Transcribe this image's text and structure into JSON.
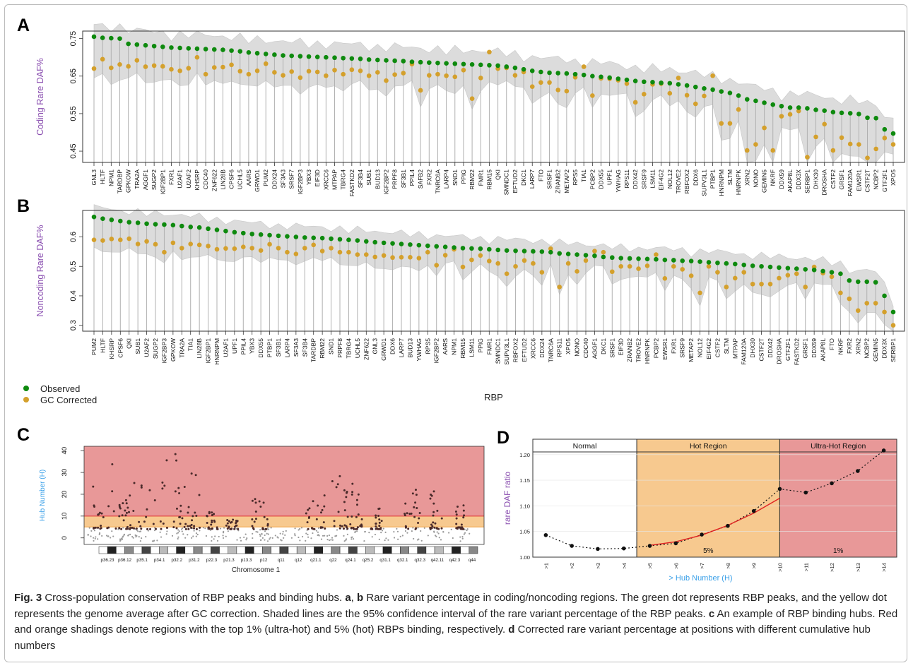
{
  "panels": {
    "a": "A",
    "b": "B",
    "c": "C",
    "d": "D"
  },
  "colors": {
    "observed": "#0e8a0e",
    "gc_corrected": "#d4a02c",
    "band": "#dcdcdc",
    "ylabel": "#8a4fb0",
    "xlabel_d": "#3aa0e8",
    "ultra_hot": "#e89898",
    "hot": "#f7c98f",
    "hub_axis": "#3aa0e8"
  },
  "legend": {
    "observed": "Observed",
    "gc_corrected": "GC Corrected"
  },
  "chart_data": [
    {
      "type": "scatter",
      "panel": "A",
      "ylabel": "Coding Rare DAF%",
      "ylim": [
        0.42,
        0.77
      ],
      "yticks": [
        0.45,
        0.55,
        0.65,
        0.75
      ],
      "categories": [
        "GNL3",
        "HLTF",
        "NPM1",
        "TARDBP",
        "GPKOW",
        "TRA2A",
        "AGGF1",
        "SUGP2",
        "IGF2BP1",
        "FXR1",
        "U2AF1",
        "U2AF2",
        "KHSRP",
        "CDC40",
        "ZNF622",
        "LIN28B",
        "CPSF6",
        "UCHL5",
        "AARS",
        "GRWD1",
        "PUM2",
        "DDX24",
        "SF3A3",
        "SRSF7",
        "IGF2BP3",
        "YBX3",
        "EIF3D",
        "XRCC6",
        "MTPAP",
        "TBRG4",
        "FASTKD2",
        "SF3B4",
        "SUB1",
        "BUD13",
        "IGF2BP2",
        "PRPF8",
        "SF3B1",
        "PPIL4",
        "SAFB2",
        "FXR2",
        "TNRC6A",
        "LARP4",
        "SND1",
        "PPIG",
        "RBM22",
        "FMR1",
        "RBM15",
        "QKI",
        "SMNDC1",
        "EFTUD2",
        "DKC1",
        "LARP7",
        "FTO",
        "SRSF1",
        "ZRANB2",
        "METAP2",
        "RPS5",
        "TIA1",
        "PCBP2",
        "DDX55",
        "UPF1",
        "YWHAG",
        "RPS11",
        "DDX42",
        "SRSF9",
        "LSM11",
        "EIF4G2",
        "NOL12",
        "TROVE2",
        "RBFOX2",
        "DDX6",
        "SUPV3L1",
        "PTBP1",
        "HNRNPM",
        "SLTM",
        "HNRNPK",
        "XRN2",
        "NONO",
        "GEMIN5",
        "NKRF",
        "DDX59",
        "AKAP8L",
        "DDX3X",
        "SERBP1",
        "DHX30",
        "DROSHA",
        "CSTF2",
        "GRSF1",
        "FAM120A",
        "EWSR1",
        "CSTF2T",
        "NCBP2",
        "GTF2F1",
        "XPO5"
      ],
      "series": [
        {
          "name": "Observed",
          "values": [
            0.755,
            0.752,
            0.751,
            0.75,
            0.736,
            0.734,
            0.732,
            0.73,
            0.728,
            0.726,
            0.725,
            0.724,
            0.723,
            0.722,
            0.721,
            0.72,
            0.718,
            0.716,
            0.713,
            0.711,
            0.709,
            0.707,
            0.705,
            0.704,
            0.703,
            0.702,
            0.701,
            0.7,
            0.699,
            0.698,
            0.697,
            0.696,
            0.694,
            0.693,
            0.692,
            0.691,
            0.69,
            0.688,
            0.687,
            0.686,
            0.685,
            0.684,
            0.683,
            0.682,
            0.681,
            0.68,
            0.679,
            0.678,
            0.675,
            0.672,
            0.668,
            0.664,
            0.661,
            0.659,
            0.658,
            0.657,
            0.655,
            0.653,
            0.65,
            0.648,
            0.646,
            0.643,
            0.64,
            0.637,
            0.635,
            0.634,
            0.632,
            0.631,
            0.628,
            0.625,
            0.621,
            0.617,
            0.614,
            0.609,
            0.605,
            0.598,
            0.588,
            0.584,
            0.579,
            0.574,
            0.57,
            0.566,
            0.566,
            0.564,
            0.56,
            0.558,
            0.554,
            0.552,
            0.551,
            0.549,
            0.539,
            0.538,
            0.508,
            0.497
          ]
        },
        {
          "name": "GC Corrected",
          "values": [
            0.67,
            0.695,
            0.672,
            0.681,
            0.676,
            0.692,
            0.675,
            0.678,
            0.676,
            0.668,
            0.664,
            0.671,
            0.7,
            0.655,
            0.673,
            0.674,
            0.68,
            0.663,
            0.655,
            0.664,
            0.683,
            0.66,
            0.652,
            0.662,
            0.646,
            0.663,
            0.661,
            0.651,
            0.666,
            0.655,
            0.667,
            0.664,
            0.651,
            0.66,
            0.638,
            0.654,
            0.658,
            0.682,
            0.612,
            0.652,
            0.655,
            0.651,
            0.648,
            0.666,
            0.59,
            0.645,
            0.714,
            0.67,
            0.672,
            0.652,
            0.661,
            0.622,
            0.633,
            0.633,
            0.613,
            0.61,
            0.647,
            0.675,
            0.598,
            0.644,
            0.643,
            0.639,
            0.63,
            0.58,
            0.602,
            0.628,
            0.63,
            0.604,
            0.645,
            0.599,
            0.576,
            0.597,
            0.651,
            0.524,
            0.524,
            0.561,
            0.452,
            0.468,
            0.512,
            0.452,
            0.543,
            0.548,
            0.557,
            0.434,
            0.488,
            0.522,
            0.452,
            0.486,
            0.469,
            0.468,
            0.432,
            0.456,
            0.485,
            0.468
          ]
        }
      ]
    },
    {
      "type": "scatter",
      "panel": "B",
      "ylabel": "Noncoding Rare DAF%",
      "xlabel": "RBP",
      "ylim": [
        0.28,
        0.69
      ],
      "yticks": [
        0.3,
        0.4,
        0.5,
        0.6
      ],
      "categories": [
        "PUM2",
        "HLTF",
        "KHSRP",
        "CPSF6",
        "QKI",
        "SUB1",
        "U2AF2",
        "SUGP2",
        "IGF2BP3",
        "GPKOW",
        "TRA2A",
        "TIA1",
        "LIN28B",
        "IGF2BP1",
        "HNRNPM",
        "U2AF1",
        "UPF1",
        "PPIL4",
        "YBX3",
        "DDX55",
        "PTBP1",
        "SF3B1",
        "LARP4",
        "SF3A3",
        "SF3B4",
        "TARDBP",
        "RBM22",
        "SND1",
        "PRPF8",
        "TBRG4",
        "UCHL5",
        "ZNF622",
        "GNL3",
        "GRWD1",
        "DDX6",
        "LARP7",
        "BUD13",
        "YWHAG",
        "RPS5",
        "IGF2BP2",
        "AARS",
        "NPM1",
        "RBM15",
        "LSM11",
        "PPIG",
        "FMR1",
        "SMNDC1",
        "SUPV3L1",
        "RBFOX2",
        "EFTUD2",
        "XRCC6",
        "DDX24",
        "TNRC6A",
        "RPS11",
        "XPO5",
        "NONO",
        "CDC40",
        "AGGF1",
        "DKC1",
        "SRSF1",
        "EIF3D",
        "ZRANB2",
        "TROVE2",
        "HNRNPK",
        "PCBP2",
        "EWSR1",
        "FXR1",
        "SRSF9",
        "METAP2",
        "NOL12",
        "EIF4G2",
        "CSTF2",
        "SLTM",
        "MTPAP",
        "FAM120A",
        "DHX30",
        "CSTF2T",
        "DDX42",
        "DROSHA",
        "GTF2F1",
        "FASTKD2",
        "GRSF1",
        "DDX59",
        "AKAP8L",
        "FTO",
        "NKRF",
        "FXR2",
        "XRN2",
        "NCBP2",
        "GEMIN5",
        "DDX3X",
        "SERBP1"
      ],
      "series": [
        {
          "name": "Observed",
          "values": [
            0.668,
            0.662,
            0.658,
            0.654,
            0.65,
            0.648,
            0.645,
            0.643,
            0.642,
            0.64,
            0.637,
            0.634,
            0.632,
            0.628,
            0.624,
            0.62,
            0.616,
            0.613,
            0.61,
            0.608,
            0.606,
            0.604,
            0.602,
            0.6,
            0.598,
            0.597,
            0.596,
            0.594,
            0.592,
            0.59,
            0.588,
            0.585,
            0.582,
            0.58,
            0.578,
            0.576,
            0.574,
            0.572,
            0.57,
            0.568,
            0.566,
            0.564,
            0.562,
            0.561,
            0.56,
            0.558,
            0.556,
            0.554,
            0.553,
            0.552,
            0.551,
            0.55,
            0.548,
            0.544,
            0.542,
            0.54,
            0.538,
            0.536,
            0.532,
            0.53,
            0.528,
            0.527,
            0.526,
            0.525,
            0.524,
            0.522,
            0.521,
            0.519,
            0.518,
            0.516,
            0.514,
            0.512,
            0.51,
            0.508,
            0.505,
            0.502,
            0.5,
            0.498,
            0.496,
            0.494,
            0.492,
            0.49,
            0.488,
            0.484,
            0.48,
            0.475,
            0.452,
            0.448,
            0.448,
            0.446,
            0.4,
            0.345
          ]
        },
        {
          "name": "GC Corrected",
          "values": [
            0.59,
            0.588,
            0.593,
            0.59,
            0.594,
            0.576,
            0.585,
            0.575,
            0.548,
            0.58,
            0.562,
            0.576,
            0.573,
            0.569,
            0.558,
            0.561,
            0.56,
            0.566,
            0.562,
            0.554,
            0.575,
            0.562,
            0.548,
            0.542,
            0.562,
            0.573,
            0.552,
            0.562,
            0.548,
            0.548,
            0.54,
            0.54,
            0.532,
            0.537,
            0.53,
            0.531,
            0.531,
            0.528,
            0.548,
            0.504,
            0.538,
            0.558,
            0.498,
            0.522,
            0.537,
            0.518,
            0.51,
            0.475,
            0.5,
            0.52,
            0.51,
            0.48,
            0.56,
            0.43,
            0.51,
            0.483,
            0.52,
            0.552,
            0.548,
            0.482,
            0.5,
            0.5,
            0.492,
            0.502,
            0.54,
            0.459,
            0.5,
            0.49,
            0.468,
            0.41,
            0.5,
            0.48,
            0.43,
            0.46,
            0.48,
            0.44,
            0.44,
            0.44,
            0.46,
            0.47,
            0.475,
            0.43,
            0.498,
            0.477,
            0.465,
            0.41,
            0.39,
            0.35,
            0.375,
            0.375,
            0.345,
            0.3
          ]
        }
      ]
    },
    {
      "type": "scatter",
      "panel": "C",
      "ylabel": "Hub Number (H)",
      "xlabel": "Chromosome 1",
      "ylim": [
        -3,
        42
      ],
      "yticks": [
        0,
        10,
        20,
        30,
        40
      ],
      "hot_threshold": 5,
      "ultra_hot_threshold": 10,
      "bands": [
        "p36.23",
        "p36.12",
        "p35.1",
        "p34.1",
        "p32.2",
        "p31.2",
        "p22.3",
        "p21.3",
        "p13.3",
        "p12",
        "q11",
        "q12",
        "q21.1",
        "q22",
        "q24.1",
        "q25.2",
        "q31.1",
        "q32.1",
        "q32.3",
        "q42.11",
        "q42.3",
        "q44"
      ]
    },
    {
      "type": "line",
      "panel": "D",
      "ylabel": "rare DAF ratio",
      "xlabel": "> Hub Number (H)",
      "categories": [
        ">1",
        ">2",
        ">3",
        ">4",
        ">5",
        ">6",
        ">7",
        ">8",
        ">9",
        ">10",
        ">11",
        ">12",
        ">13",
        ">14"
      ],
      "values": [
        1.043,
        1.022,
        1.016,
        1.017,
        1.022,
        1.027,
        1.044,
        1.061,
        1.09,
        1.133,
        1.126,
        1.144,
        1.168,
        1.208
      ],
      "ylim": [
        1.0,
        1.23
      ],
      "yticks": [
        1.0,
        1.05,
        1.1,
        1.15,
        1.2
      ],
      "fit_curve": [
        [
          5,
          1.023
        ],
        [
          6,
          1.03
        ],
        [
          7,
          1.043
        ],
        [
          8,
          1.062
        ],
        [
          9,
          1.086
        ],
        [
          10,
          1.115
        ]
      ],
      "regions": [
        {
          "label": "Normal",
          "from": 0.5,
          "to": 4.5,
          "pct": ""
        },
        {
          "label": "Hot Region",
          "from": 4.5,
          "to": 10.0,
          "pct": "5%"
        },
        {
          "label": "Ultra-Hot Region",
          "from": 10.0,
          "to": 14.5,
          "pct": "1%"
        }
      ]
    }
  ],
  "caption": {
    "fig": "Fig. 3",
    "t1": " Cross-population conservation of RBP peaks and binding hubs. ",
    "a": "a",
    "comma": ", ",
    "b": "b",
    "t2": " Rare variant percentage in coding/noncoding regions. The green dot represents RBP peaks, and the yellow dot represents the genome average after GC correction. Shaded lines are the 95% confidence interval of the rare variant percentage of the RBP peaks. ",
    "c": "c",
    "t3": " An example of RBP binding hubs. Red and orange shadings denote regions with the top 1% (ultra-hot) and 5% (hot) RBPs binding, respectively. ",
    "d": "d",
    "t4": " Corrected rare variant percentage at positions with different cumulative hub numbers"
  }
}
